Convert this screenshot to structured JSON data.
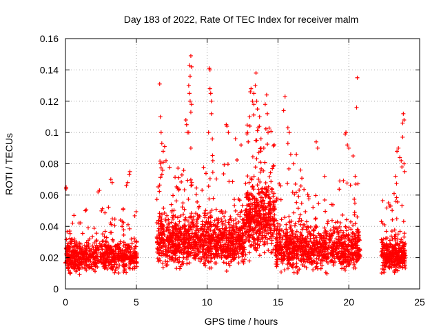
{
  "chart_data": {
    "type": "scatter",
    "title": "Day 183 of 2022, Rate Of TEC Index for receiver malm",
    "xlabel": "GPS time / hours",
    "ylabel": "ROTI / TECUs",
    "xlim": [
      0,
      25
    ],
    "ylim": [
      0,
      0.16
    ],
    "xticks": [
      "0",
      "5",
      "10",
      "15",
      "20",
      "25"
    ],
    "yticks": [
      "0",
      "0.02",
      "0.04",
      "0.06",
      "0.08",
      "0.1",
      "0.12",
      "0.14",
      "0.16"
    ],
    "grid": true,
    "marker": "plus",
    "color": "#ff0000",
    "segments": [
      {
        "start": 0.0,
        "end": 5.05,
        "base": 0.016,
        "spread": 0.012,
        "peak": 0.045,
        "n": 700
      },
      {
        "start": 6.45,
        "end": 12.7,
        "base": 0.024,
        "spread": 0.018,
        "peak": 0.075,
        "n": 1100
      },
      {
        "start": 12.7,
        "end": 14.8,
        "base": 0.035,
        "spread": 0.025,
        "peak": 0.09,
        "n": 450
      },
      {
        "start": 14.8,
        "end": 20.8,
        "base": 0.02,
        "spread": 0.016,
        "peak": 0.065,
        "n": 950
      },
      {
        "start": 22.3,
        "end": 24.0,
        "base": 0.017,
        "spread": 0.013,
        "peak": 0.06,
        "n": 330
      }
    ],
    "points": [
      [
        0.05,
        0.065
      ],
      [
        0.05,
        0.064
      ],
      [
        0.3,
        0.037
      ],
      [
        0.6,
        0.047
      ],
      [
        1.4,
        0.05
      ],
      [
        2.3,
        0.062
      ],
      [
        2.4,
        0.063
      ],
      [
        3.2,
        0.07
      ],
      [
        3.3,
        0.068
      ],
      [
        4.3,
        0.066
      ],
      [
        4.4,
        0.068
      ],
      [
        4.55,
        0.075
      ],
      [
        4.5,
        0.073
      ],
      [
        6.65,
        0.131
      ],
      [
        6.7,
        0.11
      ],
      [
        6.75,
        0.1
      ],
      [
        6.8,
        0.093
      ],
      [
        6.9,
        0.088
      ],
      [
        7.0,
        0.091
      ],
      [
        6.7,
        0.08
      ],
      [
        6.9,
        0.081
      ],
      [
        7.1,
        0.082
      ],
      [
        8.5,
        0.108
      ],
      [
        8.55,
        0.105
      ],
      [
        8.6,
        0.1
      ],
      [
        8.75,
        0.143
      ],
      [
        8.8,
        0.136
      ],
      [
        8.9,
        0.142
      ],
      [
        8.85,
        0.149
      ],
      [
        8.7,
        0.13
      ],
      [
        8.75,
        0.125
      ],
      [
        8.8,
        0.12
      ],
      [
        8.9,
        0.118
      ],
      [
        8.85,
        0.113
      ],
      [
        8.7,
        0.1
      ],
      [
        8.85,
        0.09
      ],
      [
        10.15,
        0.141
      ],
      [
        10.2,
        0.14
      ],
      [
        10.2,
        0.128
      ],
      [
        10.25,
        0.125
      ],
      [
        10.3,
        0.12
      ],
      [
        10.3,
        0.112
      ],
      [
        10.1,
        0.1
      ],
      [
        10.4,
        0.082
      ],
      [
        11.35,
        0.105
      ],
      [
        11.4,
        0.104
      ],
      [
        11.5,
        0.1
      ],
      [
        12.0,
        0.096
      ],
      [
        12.4,
        0.092
      ],
      [
        12.85,
        0.1
      ],
      [
        12.9,
        0.094
      ],
      [
        13.0,
        0.11
      ],
      [
        13.05,
        0.126
      ],
      [
        13.1,
        0.128
      ],
      [
        13.2,
        0.12
      ],
      [
        13.3,
        0.118
      ],
      [
        13.4,
        0.13
      ],
      [
        13.45,
        0.138
      ],
      [
        13.5,
        0.12
      ],
      [
        13.55,
        0.115
      ],
      [
        13.6,
        0.103
      ],
      [
        13.7,
        0.11
      ],
      [
        13.5,
        0.095
      ],
      [
        13.8,
        0.09
      ],
      [
        14.1,
        0.118
      ],
      [
        14.2,
        0.124
      ],
      [
        14.25,
        0.112
      ],
      [
        14.3,
        0.1
      ],
      [
        14.0,
        0.09
      ],
      [
        13.3,
        0.125
      ],
      [
        13.8,
        0.096
      ],
      [
        15.5,
        0.123
      ],
      [
        15.4,
        0.114
      ],
      [
        15.7,
        0.103
      ],
      [
        15.8,
        0.1
      ],
      [
        15.7,
        0.093
      ],
      [
        15.9,
        0.086
      ],
      [
        16.1,
        0.08
      ],
      [
        16.3,
        0.086
      ],
      [
        16.6,
        0.076
      ],
      [
        17.7,
        0.094
      ],
      [
        17.8,
        0.09
      ],
      [
        18.3,
        0.072
      ],
      [
        19.8,
        0.1
      ],
      [
        19.75,
        0.099
      ],
      [
        19.9,
        0.092
      ],
      [
        20.0,
        0.09
      ],
      [
        20.3,
        0.085
      ],
      [
        20.6,
        0.135
      ],
      [
        20.55,
        0.116
      ],
      [
        20.45,
        0.072
      ],
      [
        20.5,
        0.067
      ],
      [
        22.4,
        0.042
      ],
      [
        22.5,
        0.041
      ],
      [
        22.8,
        0.055
      ],
      [
        23.3,
        0.072
      ],
      [
        23.4,
        0.088
      ],
      [
        23.5,
        0.09
      ],
      [
        23.6,
        0.084
      ],
      [
        23.7,
        0.082
      ],
      [
        23.75,
        0.078
      ],
      [
        23.8,
        0.106
      ],
      [
        23.85,
        0.112
      ],
      [
        23.9,
        0.108
      ],
      [
        23.8,
        0.097
      ],
      [
        23.9,
        0.08
      ],
      [
        23.95,
        0.075
      ]
    ]
  }
}
